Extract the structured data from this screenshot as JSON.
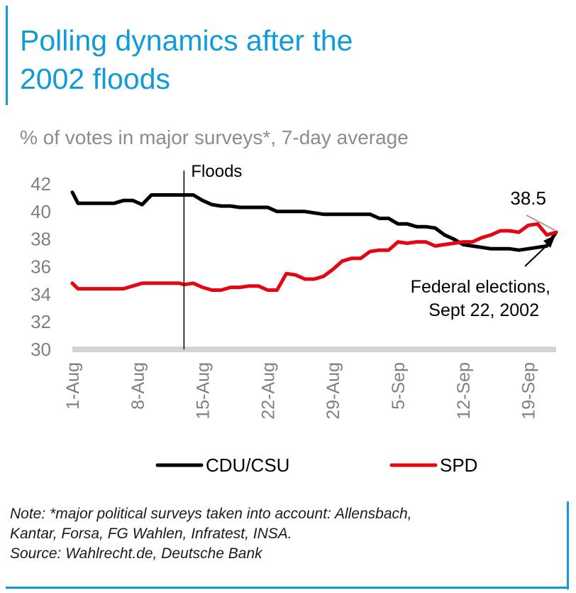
{
  "title": "Polling dynamics after the 2002 floods",
  "title_lines": [
    "Polling dynamics after the",
    "2002 floods"
  ],
  "subtitle": "% of votes in major surveys*, 7-day average",
  "note_lines": [
    "Note: *major political surveys taken into account: Allensbach,",
    "Kantar, Forsa, FG Wahlen, Infratest, INSA.",
    "Source: Wahlrecht.de, Deutsche Bank"
  ],
  "chart_data": {
    "type": "line",
    "x_tick_labels": [
      "1-Aug",
      "8-Aug",
      "15-Aug",
      "22-Aug",
      "29-Aug",
      "5-Sep",
      "12-Sep",
      "19-Sep"
    ],
    "x_tick_days": [
      1,
      8,
      15,
      22,
      29,
      36,
      43,
      50
    ],
    "xlim": [
      1,
      53
    ],
    "ylim": [
      30,
      42
    ],
    "y_ticks": [
      30,
      32,
      34,
      36,
      38,
      40,
      42
    ],
    "grid": false,
    "legend_position": "bottom",
    "series": [
      {
        "name": "CDU/CSU",
        "color": "#000000",
        "x": [
          1,
          1.6,
          2.5,
          4,
          5.5,
          6.5,
          7.5,
          8.5,
          9.5,
          10.5,
          11.5,
          12.5,
          13,
          14,
          15,
          16,
          17,
          18,
          19,
          20,
          21,
          22,
          23,
          24,
          25,
          26,
          27,
          28,
          29,
          30,
          31,
          32,
          33,
          34,
          35,
          36,
          37,
          38,
          39,
          40,
          41,
          42,
          43,
          44,
          45,
          46,
          47,
          48,
          49,
          50,
          51,
          52,
          53
        ],
        "values": [
          41.4,
          40.6,
          40.6,
          40.6,
          40.6,
          40.8,
          40.8,
          40.5,
          41.2,
          41.2,
          41.2,
          41.2,
          41.2,
          41.2,
          40.8,
          40.5,
          40.4,
          40.4,
          40.3,
          40.3,
          40.3,
          40.3,
          40.0,
          40.0,
          40.0,
          40.0,
          39.9,
          39.8,
          39.8,
          39.8,
          39.8,
          39.8,
          39.8,
          39.5,
          39.5,
          39.1,
          39.1,
          38.9,
          38.9,
          38.8,
          38.3,
          38.0,
          37.6,
          37.5,
          37.4,
          37.3,
          37.3,
          37.3,
          37.2,
          37.3,
          37.4,
          37.5,
          38.5
        ]
      },
      {
        "name": "SPD",
        "color": "#e30613",
        "x": [
          1,
          1.6,
          2.5,
          4,
          5.5,
          6.5,
          7.5,
          8.5,
          9.5,
          10.5,
          11.5,
          12.5,
          13,
          14,
          15,
          16,
          17,
          18,
          19,
          20,
          21,
          22,
          23,
          24,
          25,
          26,
          27,
          28,
          29,
          30,
          31,
          32,
          33,
          34,
          35,
          36,
          37,
          38,
          39,
          40,
          41,
          42,
          43,
          44,
          45,
          46,
          47,
          48,
          49,
          50,
          51,
          52,
          53
        ],
        "values": [
          34.8,
          34.4,
          34.4,
          34.4,
          34.4,
          34.4,
          34.6,
          34.8,
          34.8,
          34.8,
          34.8,
          34.8,
          34.7,
          34.8,
          34.5,
          34.3,
          34.3,
          34.5,
          34.5,
          34.6,
          34.6,
          34.3,
          34.3,
          35.5,
          35.4,
          35.1,
          35.1,
          35.3,
          35.8,
          36.4,
          36.6,
          36.6,
          37.1,
          37.2,
          37.2,
          37.8,
          37.7,
          37.8,
          37.8,
          37.5,
          37.6,
          37.7,
          37.8,
          37.8,
          38.1,
          38.3,
          38.6,
          38.6,
          38.5,
          39.0,
          39.1,
          38.3,
          38.5
        ]
      }
    ],
    "annotations": [
      {
        "label": "Floods",
        "x": 13
      },
      {
        "label": "38.5",
        "x": 53,
        "y": 38.5
      },
      {
        "label_lines": [
          "Federal elections,",
          "Sept 22, 2002"
        ],
        "x": 53,
        "y": 38.5
      }
    ]
  }
}
